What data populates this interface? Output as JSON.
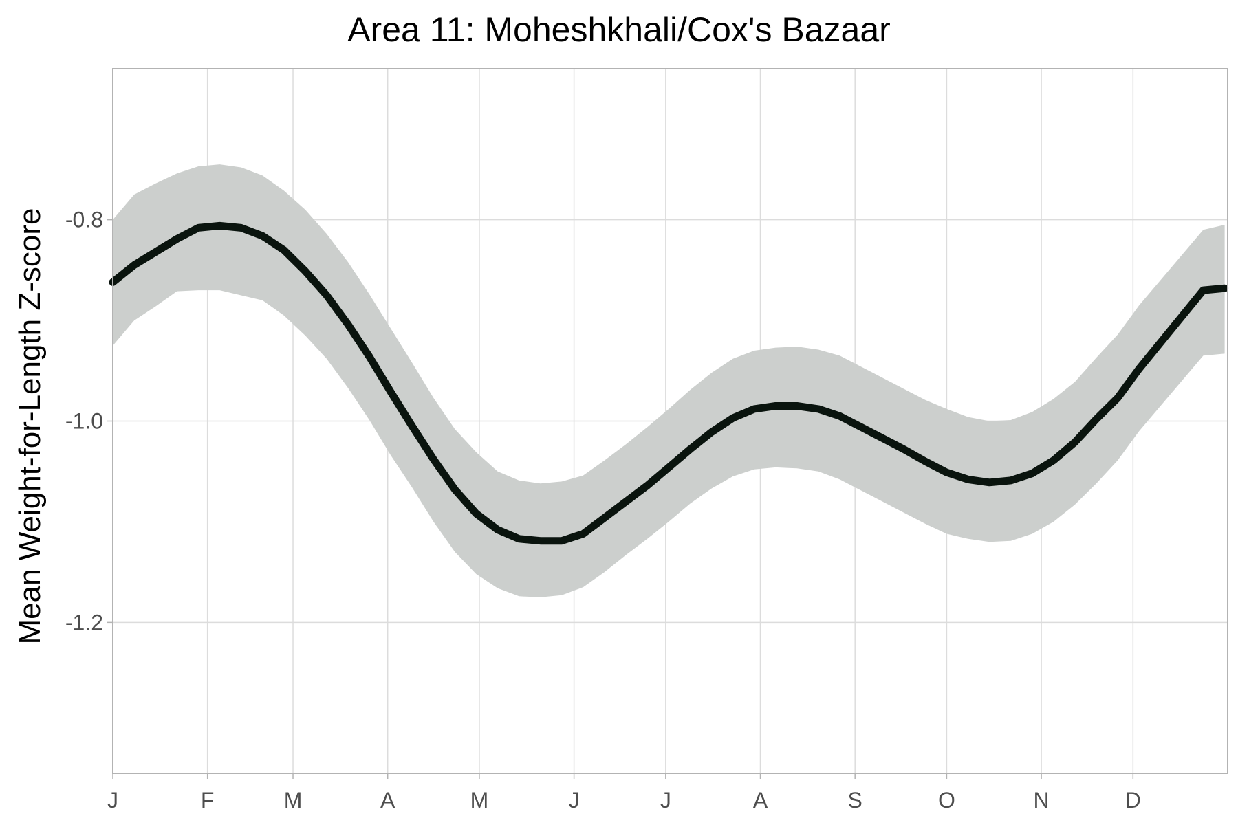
{
  "chart_data": {
    "type": "line",
    "title": "Area 11: Moheshkhali/Cox's Bazaar",
    "xlabel": "",
    "ylabel": "Mean Weight-for-Length Z-score",
    "x_ticks": [
      "J",
      "F",
      "M",
      "A",
      "M",
      "J",
      "J",
      "A",
      "S",
      "O",
      "N",
      "D"
    ],
    "y_ticks": [
      "-0.8",
      "-1.0",
      "-1.2"
    ],
    "y_tick_values": [
      -0.8,
      -1.0,
      -1.2
    ],
    "x_range": [
      1,
      366
    ],
    "ylim": [
      -1.35,
      -0.65
    ],
    "grid": true,
    "series": [
      {
        "x": [
          1,
          8,
          15,
          22,
          29,
          36,
          43,
          50,
          57,
          64,
          71,
          78,
          85,
          92,
          99,
          106,
          113,
          120,
          127,
          134,
          141,
          148,
          155,
          162,
          169,
          176,
          183,
          190,
          197,
          204,
          211,
          218,
          225,
          232,
          239,
          246,
          253,
          260,
          267,
          274,
          281,
          288,
          295,
          302,
          309,
          316,
          323,
          330,
          337,
          344,
          351,
          358,
          365
        ],
        "values": [
          -0.862,
          -0.845,
          -0.832,
          -0.819,
          -0.808,
          -0.806,
          -0.808,
          -0.816,
          -0.83,
          -0.851,
          -0.875,
          -0.904,
          -0.936,
          -0.971,
          -1.005,
          -1.038,
          -1.068,
          -1.092,
          -1.108,
          -1.117,
          -1.119,
          -1.119,
          -1.112,
          -1.096,
          -1.08,
          -1.064,
          -1.046,
          -1.028,
          -1.011,
          -0.997,
          -0.988,
          -0.985,
          -0.985,
          -0.988,
          -0.995,
          -1.006,
          -1.017,
          -1.028,
          -1.04,
          -1.051,
          -1.058,
          -1.061,
          -1.059,
          -1.052,
          -1.039,
          -1.021,
          -0.998,
          -0.977,
          -0.948,
          -0.922,
          -0.896,
          -0.87,
          -0.868
        ],
        "lower": [
          -0.925,
          -0.9,
          -0.886,
          -0.871,
          -0.87,
          -0.87,
          -0.875,
          -0.88,
          -0.895,
          -0.915,
          -0.938,
          -0.967,
          -0.999,
          -1.034,
          -1.066,
          -1.1,
          -1.13,
          -1.152,
          -1.166,
          -1.174,
          -1.175,
          -1.173,
          -1.165,
          -1.15,
          -1.133,
          -1.117,
          -1.1,
          -1.082,
          -1.067,
          -1.055,
          -1.048,
          -1.046,
          -1.047,
          -1.05,
          -1.058,
          -1.069,
          -1.08,
          -1.091,
          -1.102,
          -1.112,
          -1.117,
          -1.12,
          -1.119,
          -1.112,
          -1.1,
          -1.083,
          -1.062,
          -1.039,
          -1.01,
          -0.985,
          -0.96,
          -0.935,
          -0.933
        ],
        "upper": [
          -0.8,
          -0.775,
          -0.764,
          -0.754,
          -0.747,
          -0.745,
          -0.748,
          -0.756,
          -0.771,
          -0.79,
          -0.814,
          -0.842,
          -0.874,
          -0.908,
          -0.942,
          -0.977,
          -1.008,
          -1.031,
          -1.05,
          -1.059,
          -1.062,
          -1.06,
          -1.054,
          -1.039,
          -1.023,
          -1.006,
          -0.988,
          -0.969,
          -0.952,
          -0.938,
          -0.93,
          -0.927,
          -0.926,
          -0.929,
          -0.935,
          -0.946,
          -0.957,
          -0.968,
          -0.979,
          -0.988,
          -0.996,
          -1.0,
          -0.999,
          -0.991,
          -0.978,
          -0.961,
          -0.937,
          -0.914,
          -0.885,
          -0.86,
          -0.835,
          -0.81,
          -0.805
        ]
      }
    ]
  },
  "colors": {
    "line": "#0a140e",
    "ribbon": "#cccfcd",
    "grid": "#dcdcdc",
    "axis": "#b3b3b3",
    "tick_text": "#4d4d4d"
  }
}
